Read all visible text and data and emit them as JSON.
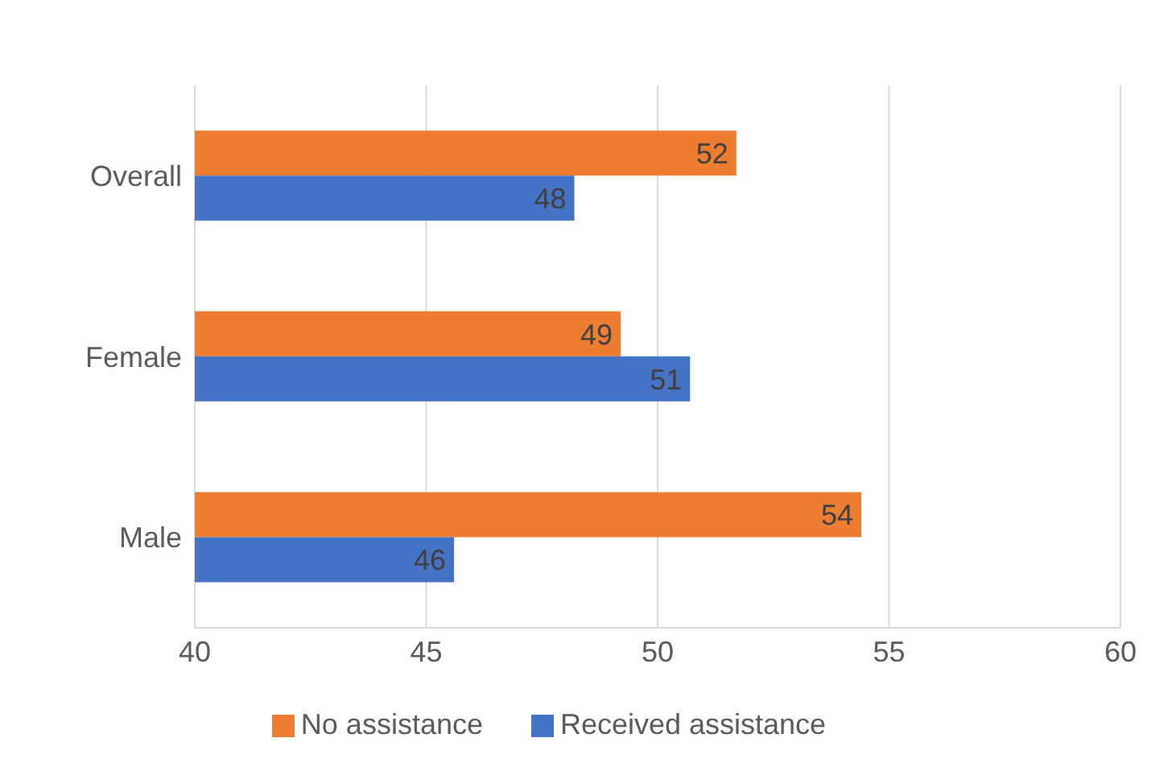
{
  "chart_data": {
    "type": "bar",
    "orientation": "horizontal",
    "categories": [
      "Overall",
      "Female",
      "Male"
    ],
    "series": [
      {
        "name": "No assistance",
        "color": "#ed7d31",
        "values": [
          51.7,
          49.2,
          54.4
        ],
        "value_labels": [
          "52",
          "49",
          "54"
        ]
      },
      {
        "name": "Received assistance",
        "color": "#4472c4",
        "values": [
          48.2,
          50.7,
          45.6
        ],
        "value_labels": [
          "48",
          "51",
          "46"
        ]
      }
    ],
    "xlim": [
      40,
      60
    ],
    "xticks": [
      40,
      45,
      50,
      55,
      60
    ],
    "grid": "x",
    "legend": "bottom"
  }
}
